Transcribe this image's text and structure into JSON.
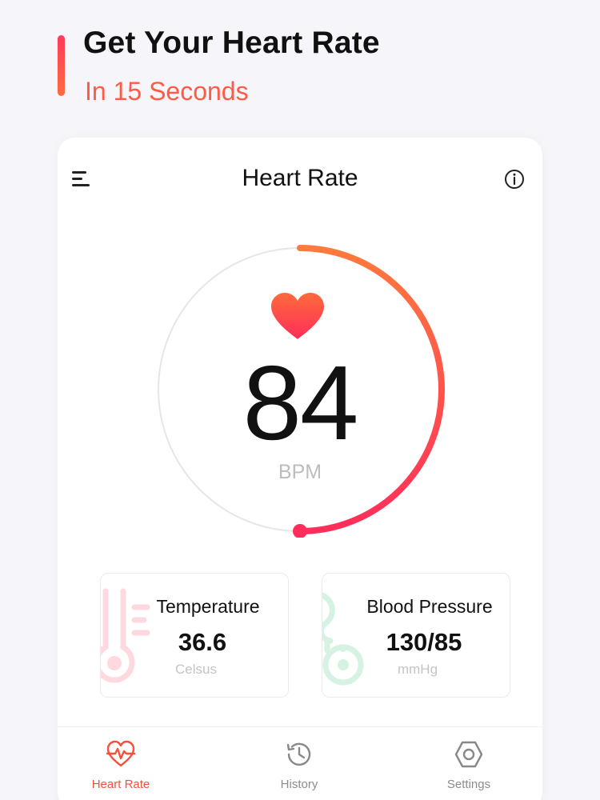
{
  "promo": {
    "title": "Get Your Heart Rate",
    "subtitle": "In 15 Seconds"
  },
  "header": {
    "title": "Heart Rate",
    "left_icon": "menu-icon",
    "right_icon": "info-icon"
  },
  "measurement": {
    "bpm": "84",
    "unit": "BPM",
    "progress": 0.5,
    "icon": "heart-icon"
  },
  "metrics": [
    {
      "label": "Temperature",
      "value": "36.6",
      "unit": "Celsus",
      "icon": "thermometer-icon"
    },
    {
      "label": "Blood Pressure",
      "value": "130/85",
      "unit": "mmHg",
      "icon": "stethoscope-icon"
    }
  ],
  "nav": [
    {
      "label": "Heart Rate",
      "icon": "heart-pulse-icon",
      "active": true
    },
    {
      "label": "History",
      "icon": "history-icon",
      "active": false
    },
    {
      "label": "Settings",
      "icon": "settings-icon",
      "active": false
    }
  ],
  "colors": {
    "accent_start": "#ff7a3c",
    "accent_end": "#ff2d5b",
    "background": "#f6f5fa",
    "card": "#ffffff",
    "active_nav": "#f4513b"
  }
}
